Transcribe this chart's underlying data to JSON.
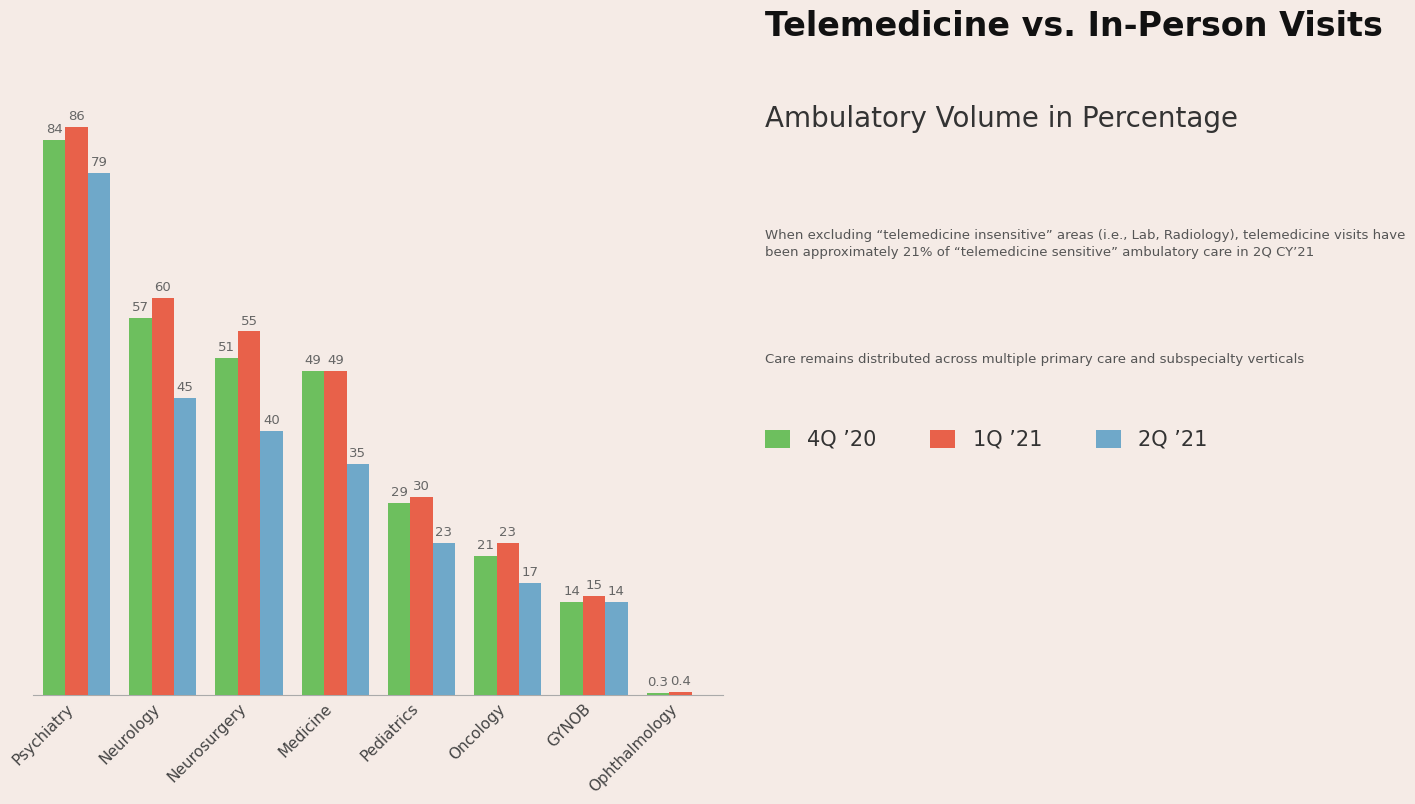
{
  "title_bold": "Telemedicine vs. In-Person Visits",
  "title_sub": "Ambulatory Volume in Percentage",
  "description1": "When excluding “telemedicine insensitive” areas (i.e., Lab, Radiology), telemedicine visits have\nbeen approximately 21% of “telemedicine sensitive” ambulatory care in 2Q CY’21",
  "description2": "Care remains distributed across multiple primary care and subspecialty verticals",
  "categories": [
    "Psychiatry",
    "Neurology",
    "Neurosurgery",
    "Medicine",
    "Pediatrics",
    "Oncology",
    "GYNOB",
    "Ophthalmology"
  ],
  "series": {
    "4Q ’20": [
      84,
      57,
      51,
      49,
      29,
      21,
      14,
      0.3
    ],
    "1Q ’21": [
      86,
      60,
      55,
      49,
      30,
      23,
      15,
      0.4
    ],
    "2Q ’21": [
      79,
      45,
      40,
      35,
      23,
      17,
      14,
      0
    ]
  },
  "colors": {
    "4Q ’20": "#6dbf5e",
    "1Q ’21": "#e8614a",
    "2Q ’21": "#6fa8c9"
  },
  "background_color": "#f5ebe6",
  "bar_width": 0.26,
  "ylim": [
    0,
    100
  ],
  "label_fontsize": 9.5,
  "title_bold_fontsize": 24,
  "title_sub_fontsize": 20,
  "desc_fontsize": 9.5,
  "legend_fontsize": 15,
  "xtick_fontsize": 11
}
